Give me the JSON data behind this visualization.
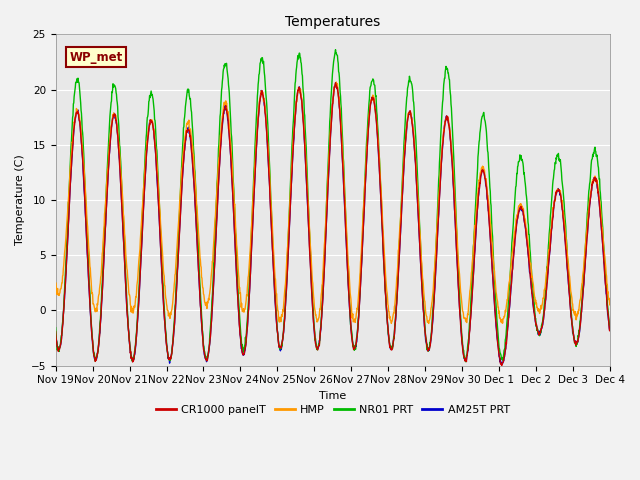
{
  "title": "Temperatures",
  "xlabel": "Time",
  "ylabel": "Temperature (C)",
  "ylim": [
    -5,
    25
  ],
  "plot_bg_color": "#e8e8e8",
  "fig_bg_color": "#f2f2f2",
  "annotation_text": "WP_met",
  "annotation_bg": "#ffffcc",
  "annotation_border": "#8b0000",
  "legend_labels": [
    "CR1000 panelT",
    "HMP",
    "NR01 PRT",
    "AM25T PRT"
  ],
  "legend_colors": [
    "#cc0000",
    "#ff9900",
    "#00bb00",
    "#0000cc"
  ],
  "xtick_labels": [
    "Nov 19",
    "Nov 20",
    "Nov 21",
    "Nov 22",
    "Nov 23",
    "Nov 24",
    "Nov 25",
    "Nov 26",
    "Nov 27",
    "Nov 28",
    "Nov 29",
    "Nov 30",
    "Dec 1",
    "Dec 2",
    "Dec 3",
    "Dec 4"
  ],
  "ytick_values": [
    -5,
    0,
    5,
    10,
    15,
    20,
    25
  ],
  "title_fontsize": 10,
  "axis_fontsize": 8,
  "tick_fontsize": 7.5,
  "linewidth": 1.0
}
